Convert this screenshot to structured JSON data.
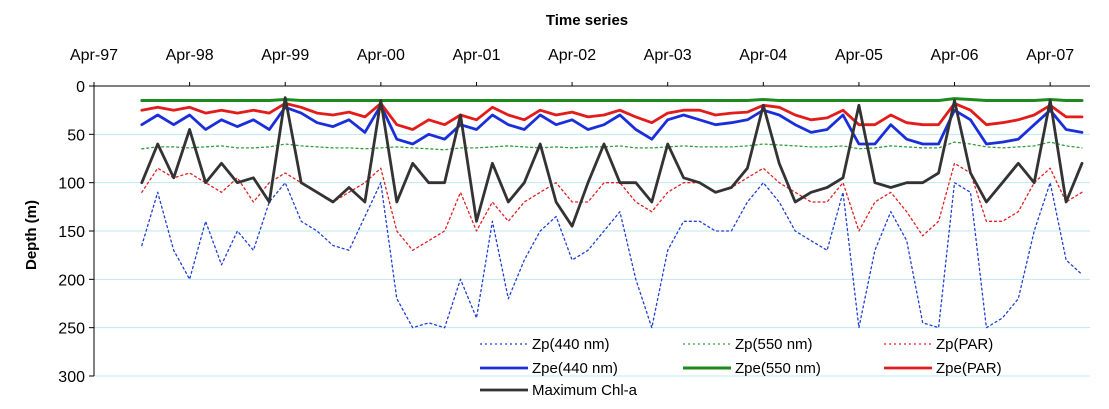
{
  "chart_data": {
    "type": "line",
    "title": "Time series",
    "xlabel": "",
    "ylabel": "Depth (m)",
    "x_axis_position": "top",
    "y_inverted": true,
    "ylim": [
      0,
      300
    ],
    "yticks": [
      0,
      50,
      100,
      150,
      200,
      250,
      300
    ],
    "xlim": [
      "1997-04",
      "2007-09"
    ],
    "xticks": [
      "Apr-97",
      "Apr-98",
      "Apr-99",
      "Apr-00",
      "Apr-01",
      "Apr-02",
      "Apr-03",
      "Apr-04",
      "Apr-05",
      "Apr-06",
      "Apr-07"
    ],
    "grid": "horizontal",
    "legend_position": "bottom-right",
    "x": [
      "1997-10",
      "1997-12",
      "1998-02",
      "1998-04",
      "1998-06",
      "1998-08",
      "1998-10",
      "1998-12",
      "1999-02",
      "1999-04",
      "1999-06",
      "1999-08",
      "1999-10",
      "1999-12",
      "2000-02",
      "2000-04",
      "2000-06",
      "2000-08",
      "2000-10",
      "2000-12",
      "2001-02",
      "2001-04",
      "2001-06",
      "2001-08",
      "2001-10",
      "2001-12",
      "2002-02",
      "2002-04",
      "2002-06",
      "2002-08",
      "2002-10",
      "2002-12",
      "2003-02",
      "2003-04",
      "2003-06",
      "2003-08",
      "2003-10",
      "2003-12",
      "2004-02",
      "2004-04",
      "2004-06",
      "2004-08",
      "2004-10",
      "2004-12",
      "2005-02",
      "2005-04",
      "2005-06",
      "2005-08",
      "2005-10",
      "2005-12",
      "2006-02",
      "2006-04",
      "2006-06",
      "2006-08",
      "2006-10",
      "2006-12",
      "2007-02",
      "2007-04",
      "2007-06",
      "2007-08"
    ],
    "series": [
      {
        "name": "Zp(440 nm)",
        "color": "#1f3fd6",
        "style": "dotted",
        "width": 1.3,
        "values": [
          165,
          110,
          170,
          200,
          140,
          185,
          150,
          170,
          120,
          100,
          140,
          150,
          165,
          170,
          135,
          100,
          220,
          250,
          245,
          250,
          200,
          240,
          140,
          220,
          180,
          150,
          135,
          180,
          170,
          150,
          130,
          200,
          250,
          170,
          140,
          140,
          150,
          150,
          120,
          100,
          120,
          150,
          160,
          170,
          110,
          250,
          170,
          130,
          160,
          245,
          250,
          100,
          110,
          250,
          240,
          220,
          150,
          100,
          180,
          195
        ]
      },
      {
        "name": "Zp(550 nm)",
        "color": "#2e9e3a",
        "style": "dotted",
        "width": 1.3,
        "values": [
          65,
          63,
          63,
          64,
          63,
          62,
          64,
          64,
          63,
          60,
          62,
          63,
          64,
          64,
          65,
          64,
          63,
          64,
          65,
          66,
          64,
          64,
          63,
          62,
          63,
          64,
          63,
          64,
          63,
          63,
          62,
          64,
          64,
          63,
          62,
          63,
          63,
          63,
          62,
          60,
          61,
          62,
          63,
          63,
          62,
          65,
          64,
          62,
          63,
          64,
          64,
          58,
          60,
          63,
          64,
          63,
          62,
          58,
          62,
          64
        ]
      },
      {
        "name": "Zp(PAR)",
        "color": "#e02020",
        "style": "dotted",
        "width": 1.3,
        "values": [
          110,
          85,
          95,
          90,
          100,
          110,
          95,
          120,
          100,
          90,
          100,
          110,
          120,
          110,
          100,
          85,
          150,
          170,
          160,
          150,
          110,
          150,
          120,
          140,
          120,
          110,
          100,
          120,
          120,
          100,
          100,
          120,
          130,
          110,
          100,
          100,
          110,
          105,
          95,
          85,
          100,
          110,
          120,
          120,
          100,
          150,
          120,
          110,
          130,
          155,
          140,
          80,
          90,
          140,
          140,
          130,
          100,
          85,
          120,
          110
        ]
      },
      {
        "name": "Zpe(440 nm)",
        "color": "#1a2fd9",
        "style": "solid",
        "width": 2.8,
        "values": [
          40,
          30,
          40,
          30,
          45,
          35,
          42,
          35,
          45,
          22,
          28,
          38,
          42,
          35,
          48,
          20,
          55,
          60,
          50,
          55,
          40,
          45,
          30,
          40,
          45,
          30,
          40,
          35,
          45,
          40,
          30,
          45,
          55,
          35,
          30,
          35,
          40,
          38,
          35,
          25,
          30,
          40,
          48,
          45,
          30,
          60,
          60,
          40,
          55,
          60,
          60,
          25,
          35,
          60,
          58,
          55,
          40,
          25,
          45,
          48
        ]
      },
      {
        "name": "Zpe(550 nm)",
        "color": "#1e8a1e",
        "style": "solid",
        "width": 3.0,
        "values": [
          15,
          15,
          15,
          15,
          15,
          15,
          15,
          15,
          15,
          14,
          15,
          15,
          15,
          15,
          15,
          15,
          15,
          15,
          15,
          15,
          15,
          15,
          15,
          15,
          15,
          15,
          15,
          15,
          15,
          15,
          15,
          15,
          15,
          15,
          15,
          15,
          15,
          15,
          15,
          14,
          15,
          15,
          15,
          15,
          15,
          15,
          15,
          15,
          15,
          15,
          15,
          13,
          14,
          15,
          15,
          15,
          15,
          14,
          15,
          15
        ]
      },
      {
        "name": "Zpe(PAR)",
        "color": "#e21b1b",
        "style": "solid",
        "width": 2.8,
        "values": [
          25,
          22,
          25,
          22,
          28,
          25,
          28,
          25,
          28,
          18,
          22,
          28,
          30,
          27,
          32,
          18,
          40,
          45,
          35,
          40,
          30,
          35,
          22,
          30,
          35,
          25,
          30,
          27,
          32,
          30,
          25,
          32,
          38,
          28,
          25,
          25,
          30,
          28,
          27,
          20,
          22,
          30,
          35,
          33,
          25,
          40,
          40,
          30,
          38,
          40,
          40,
          18,
          25,
          40,
          38,
          35,
          30,
          20,
          32,
          32
        ]
      },
      {
        "name": "Maximum Chl-a",
        "color": "#333333",
        "style": "solid",
        "width": 2.8,
        "values": [
          100,
          60,
          95,
          45,
          100,
          80,
          100,
          95,
          120,
          12,
          100,
          110,
          120,
          105,
          120,
          15,
          120,
          80,
          100,
          100,
          30,
          140,
          80,
          120,
          100,
          60,
          120,
          145,
          100,
          60,
          100,
          100,
          120,
          60,
          95,
          100,
          110,
          105,
          85,
          20,
          80,
          120,
          110,
          105,
          95,
          20,
          100,
          105,
          100,
          100,
          90,
          15,
          90,
          120,
          100,
          80,
          100,
          15,
          120,
          80
        ]
      }
    ]
  }
}
